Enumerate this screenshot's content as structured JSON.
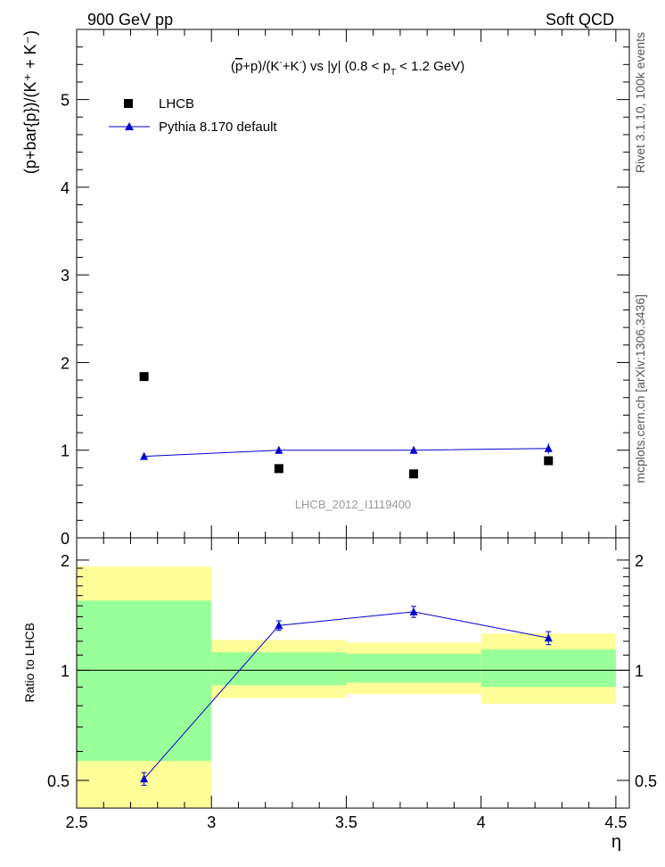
{
  "header": {
    "left": "900 GeV pp",
    "right": "Soft QCD"
  },
  "side_labels": {
    "rivet": "Rivet 3.1.10,  100k events",
    "mcplots": "mcplots.cern.ch [arXiv:1306.3436]"
  },
  "main_title": "(p̄+p)/(K⁻+K⁻) vs |y| (0.8 < p_T < 1.2 GeV)",
  "analysis_id": "LHCB_2012_I1119400",
  "colors": {
    "mc": "#0000cc",
    "data": "#000000",
    "band_inner": "#99ff99",
    "band_outer": "#ffff99",
    "id_text": "#999999"
  },
  "chart_data": [
    {
      "type": "scatter",
      "panel": "main",
      "ylabel": "(p+bar{p})/(K⁺ + K⁻)",
      "ylim": [
        0,
        5.8
      ],
      "xlim": [
        2.5,
        4.55
      ],
      "yticks": [
        0,
        1,
        2,
        3,
        4,
        5
      ],
      "ytick_labels": [
        "0",
        "1",
        "2",
        "3",
        "4",
        "5"
      ],
      "legend": [
        "LHCB",
        "Pythia 8.170 default"
      ],
      "legend_position": "top-left",
      "series": [
        {
          "name": "LHCB",
          "marker": "square",
          "x": [
            2.75,
            3.25,
            3.75,
            4.25
          ],
          "y": [
            1.84,
            0.79,
            0.73,
            0.88
          ]
        },
        {
          "name": "Pythia 8.170 default",
          "marker": "triangle",
          "x": [
            2.75,
            3.25,
            3.75,
            4.25
          ],
          "y": [
            0.93,
            1.0,
            1.0,
            1.02
          ],
          "yerr": [
            0.02,
            0.04,
            0.04,
            0.06
          ]
        }
      ]
    },
    {
      "type": "line",
      "panel": "ratio",
      "ylabel": "Ratio to LHCB",
      "xlabel": "η",
      "yscale": "log",
      "ylim": [
        0.42,
        2.3
      ],
      "xlim": [
        2.5,
        4.55
      ],
      "yticks": [
        0.5,
        1,
        2
      ],
      "ytick_labels": [
        "0.5",
        "1",
        "2"
      ],
      "xticks": [
        2.5,
        3,
        3.5,
        4,
        4.5
      ],
      "xtick_labels": [
        "2.5",
        "3",
        "3.5",
        "4",
        "4.5"
      ],
      "reference_line": 1,
      "bands": [
        {
          "x0": 2.5,
          "x1": 3.0,
          "outer": [
            0.35,
            1.92
          ],
          "inner": [
            0.565,
            1.55
          ]
        },
        {
          "x0": 3.0,
          "x1": 3.5,
          "outer": [
            0.84,
            1.21
          ],
          "inner": [
            0.91,
            1.12
          ]
        },
        {
          "x0": 3.5,
          "x1": 4.0,
          "outer": [
            0.86,
            1.19
          ],
          "inner": [
            0.925,
            1.11
          ]
        },
        {
          "x0": 4.0,
          "x1": 4.5,
          "outer": [
            0.81,
            1.26
          ],
          "inner": [
            0.9,
            1.14
          ]
        }
      ],
      "series": [
        {
          "name": "Pythia 8.170 default",
          "x": [
            2.75,
            3.25,
            3.75,
            4.25
          ],
          "y": [
            0.505,
            1.325,
            1.445,
            1.225
          ],
          "yerr": [
            0.02,
            0.04,
            0.05,
            0.05
          ]
        }
      ]
    }
  ]
}
